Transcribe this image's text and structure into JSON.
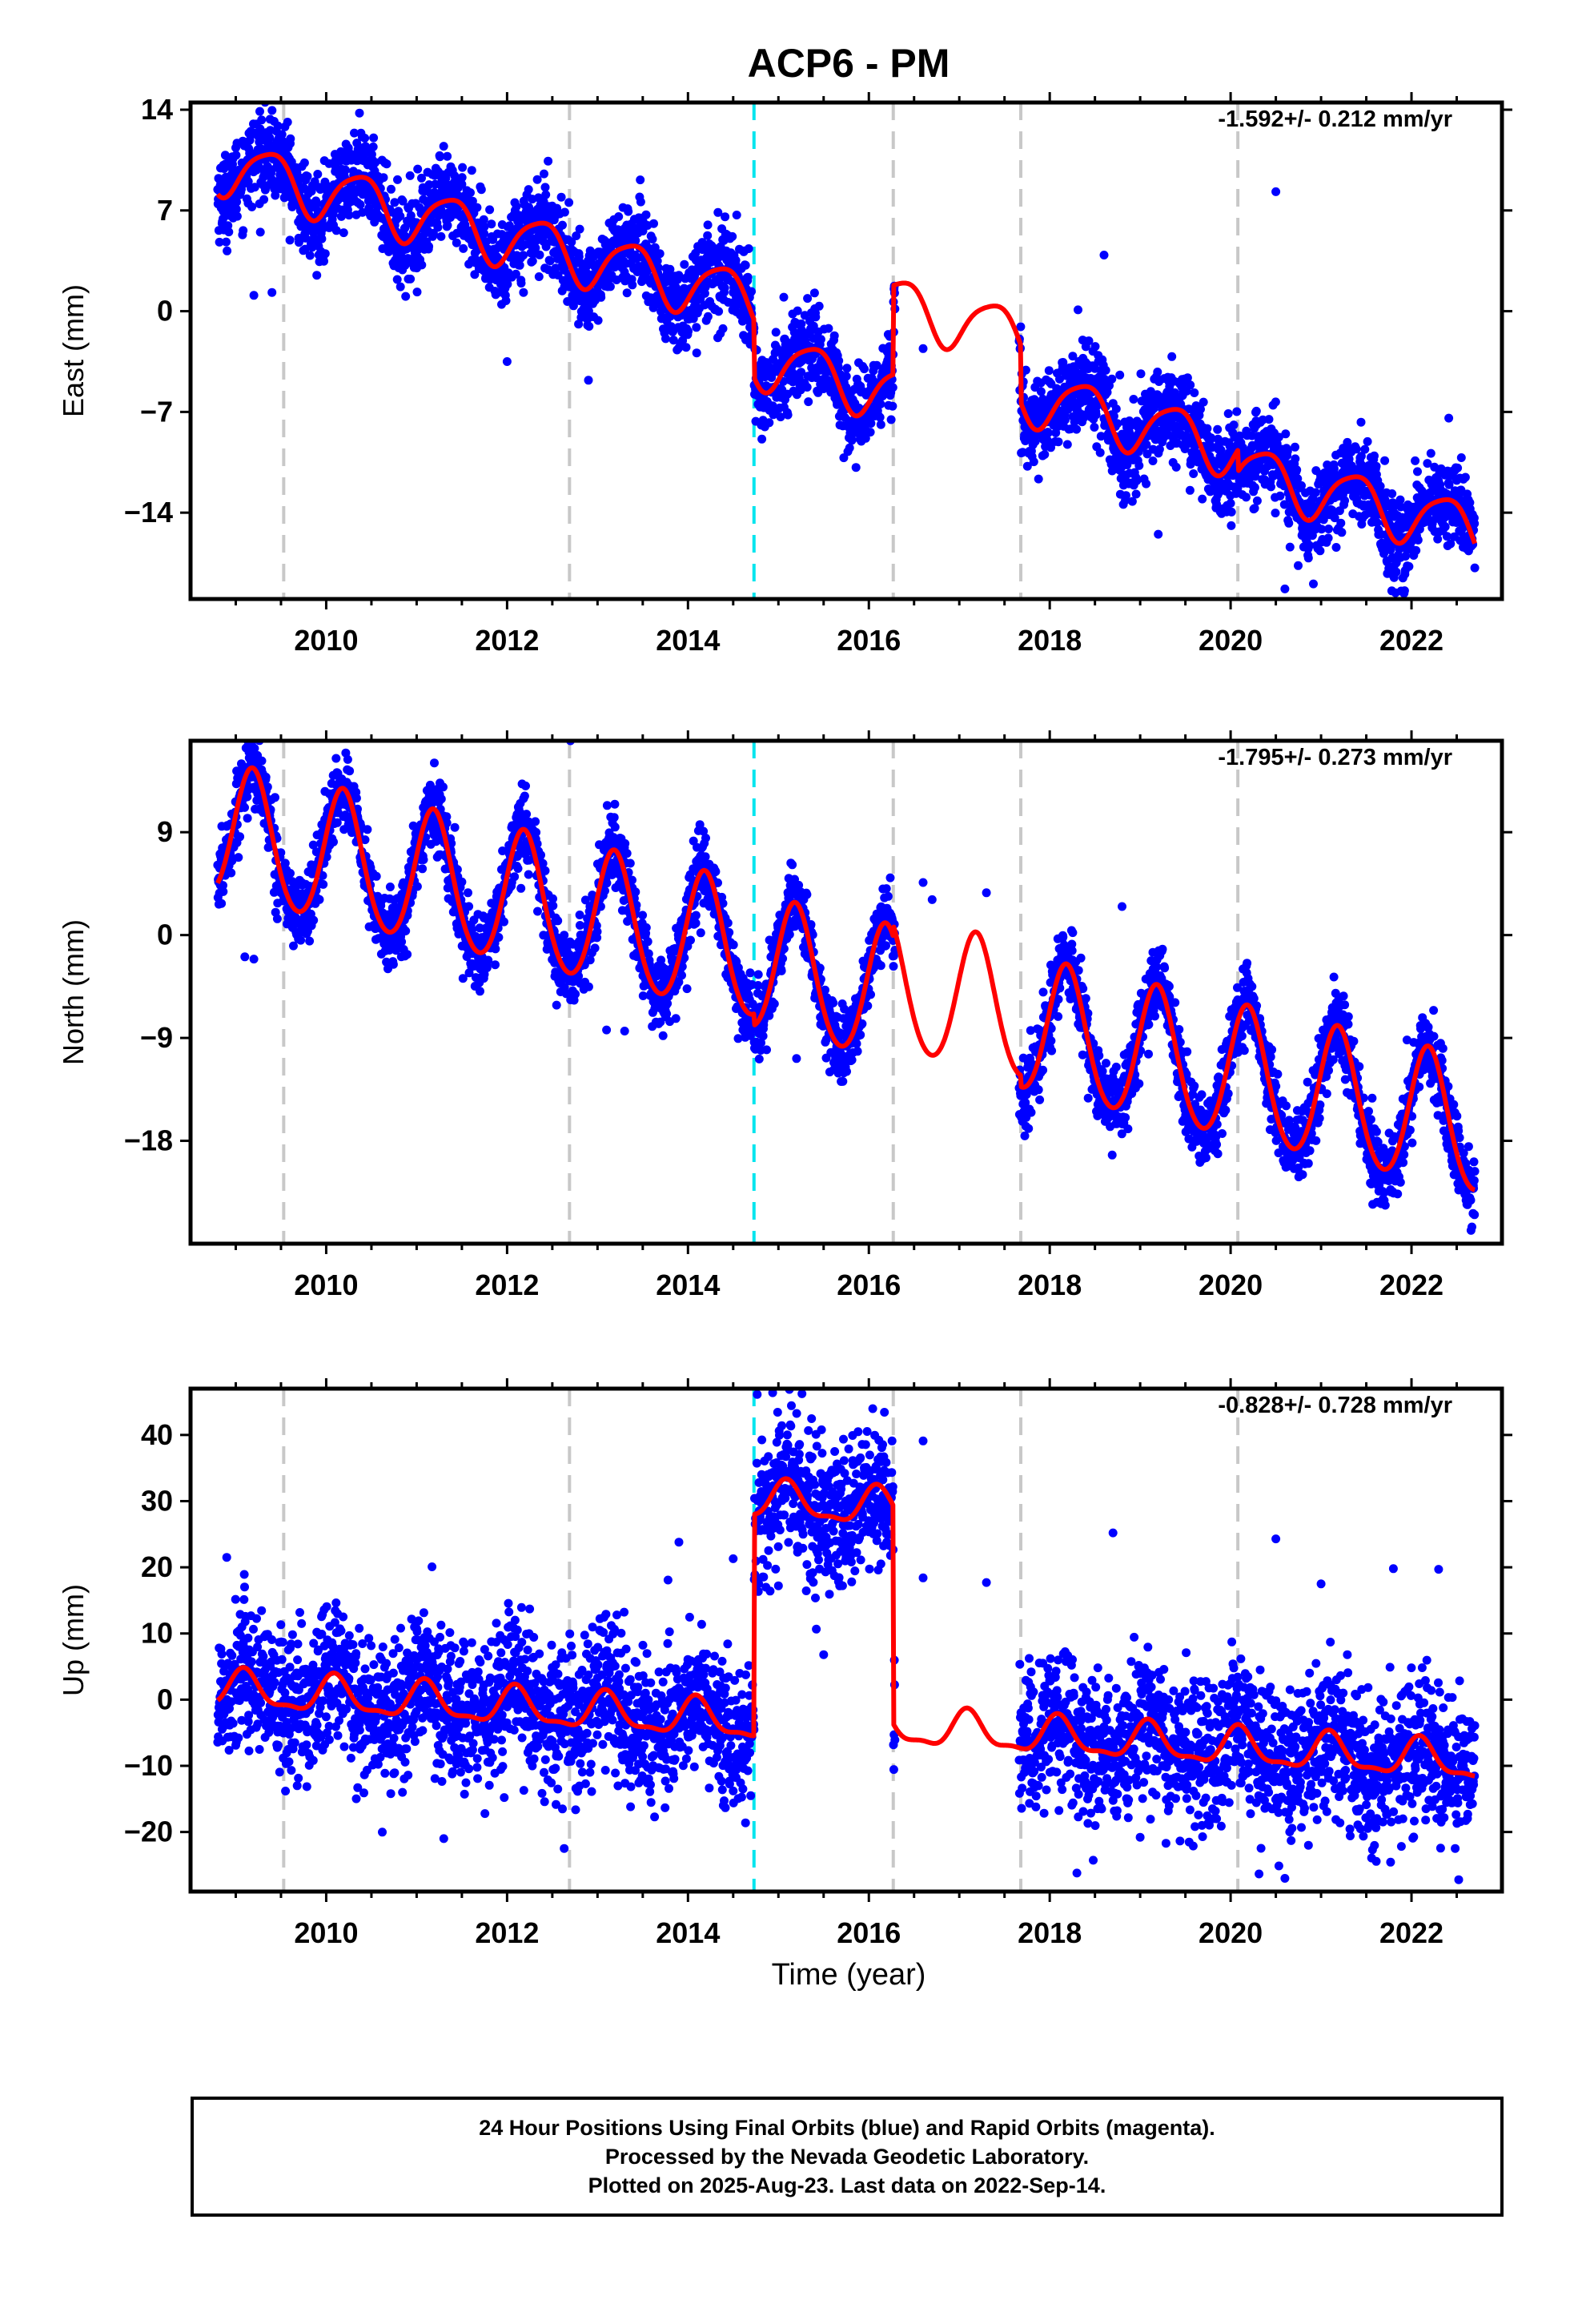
{
  "title": "ACP6 - PM",
  "xlabel": "Time (year)",
  "colors": {
    "final_orbits": "#0000ff",
    "model": "#ff0000",
    "equipment_change": "#c8c8c8",
    "earthquake": "#00e5ee",
    "frame": "#000000"
  },
  "footer": {
    "line1": "24 Hour Positions Using Final Orbits (blue) and Rapid Orbits (magenta).",
    "line2": "Processed by the Nevada Geodetic Laboratory.",
    "line3": "Plotted on 2025-Aug-23. Last data on 2022-Sep-14."
  },
  "chart_data": [
    {
      "type": "scatter",
      "component": "east",
      "ylabel": "East (mm)",
      "rate_label": "-1.592+/- 0.212 mm/yr",
      "xlim": [
        2008.5,
        2023.0
      ],
      "ylim": [
        -20.0,
        14.5
      ],
      "yticks": [
        14,
        7,
        0,
        -7,
        -14
      ],
      "xticks": [
        2010,
        2012,
        2014,
        2016,
        2018,
        2020,
        2022
      ],
      "vlines_gray": [
        2009.53,
        2012.69,
        2016.27,
        2017.68,
        2020.08
      ],
      "vlines_cyan": [
        2014.73
      ],
      "data_span": [
        2008.8,
        2022.7
      ],
      "gaps": [
        [
          2016.27,
          2017.68
        ]
      ],
      "model": {
        "offset": 10.2,
        "rate": -1.592,
        "ref_year": 2008.8,
        "annual_sin": 1.4,
        "annual_cos": -1.3,
        "semi_sin": 0.3,
        "semi_cos": 0.2,
        "steps": [
          {
            "t": 2014.73,
            "dy": -4.0
          },
          {
            "t": 2016.27,
            "dy": 6.2
          },
          {
            "t": 2017.68,
            "dy": -4.0
          },
          {
            "t": 2020.08,
            "dy": -1.5
          }
        ]
      },
      "scatter_sigma": 1.5,
      "outliers": [
        [
          2009.2,
          1.1
        ],
        [
          2009.4,
          1.3
        ],
        [
          2012.0,
          -3.5
        ],
        [
          2012.9,
          -4.8
        ],
        [
          2016.6,
          -2.6
        ],
        [
          2018.6,
          3.9
        ],
        [
          2019.2,
          -15.5
        ],
        [
          2020.5,
          8.3
        ],
        [
          2020.6,
          -19.3
        ],
        [
          2022.4,
          -16.3
        ]
      ],
      "n_points": 4300
    },
    {
      "type": "scatter",
      "component": "north",
      "ylabel": "North (mm)",
      "rate_label": "-1.795+/- 0.273 mm/yr",
      "xlim": [
        2008.5,
        2023.0
      ],
      "ylim": [
        -27.0,
        17.0
      ],
      "yticks": [
        9,
        0,
        -9,
        -18
      ],
      "xticks": [
        2010,
        2012,
        2014,
        2016,
        2018,
        2020,
        2022
      ],
      "vlines_gray": [
        2009.53,
        2012.69,
        2016.27,
        2017.68,
        2020.08
      ],
      "vlines_cyan": [
        2014.73
      ],
      "data_span": [
        2008.8,
        2022.7
      ],
      "gaps": [
        [
          2016.27,
          2017.68
        ]
      ],
      "model": {
        "offset": 9.0,
        "rate": -1.795,
        "ref_year": 2008.8,
        "annual_sin": 5.4,
        "annual_cos": 2.2,
        "semi_sin": 0.4,
        "semi_cos": -0.3,
        "steps": [
          {
            "t": 2014.73,
            "dy": -1.0
          },
          {
            "t": 2016.27,
            "dy": 1.0
          },
          {
            "t": 2017.68,
            "dy": -1.0
          }
        ]
      },
      "scatter_sigma": 1.6,
      "outliers": [
        [
          2009.1,
          -1.9
        ],
        [
          2009.2,
          -2.1
        ],
        [
          2013.1,
          -8.3
        ],
        [
          2013.3,
          -8.4
        ],
        [
          2015.2,
          -10.8
        ],
        [
          2016.6,
          4.6
        ],
        [
          2016.7,
          3.1
        ],
        [
          2017.3,
          3.7
        ],
        [
          2018.8,
          2.5
        ],
        [
          2012.7,
          17.0
        ]
      ],
      "n_points": 4300
    },
    {
      "type": "scatter",
      "component": "up",
      "ylabel": "Up (mm)",
      "rate_label": "-0.828+/- 0.728 mm/yr",
      "xlim": [
        2008.5,
        2023.0
      ],
      "ylim": [
        -29.0,
        47.0
      ],
      "yticks": [
        40,
        30,
        20,
        10,
        0,
        -10,
        -20
      ],
      "xticks": [
        2010,
        2012,
        2014,
        2016,
        2018,
        2020,
        2022
      ],
      "vlines_gray": [
        2009.53,
        2012.69,
        2016.27,
        2017.68,
        2020.08
      ],
      "vlines_cyan": [
        2014.73
      ],
      "data_span": [
        2008.8,
        2022.7
      ],
      "gaps": [
        [
          2016.27,
          2017.68
        ]
      ],
      "model": {
        "offset": 1.5,
        "rate": -0.828,
        "ref_year": 2008.8,
        "annual_sin": 1.5,
        "annual_cos": 2.2,
        "semi_sin": 0.8,
        "semi_cos": 0.5,
        "steps": [
          {
            "t": 2014.73,
            "dy": 33.5
          },
          {
            "t": 2016.27,
            "dy": -33.0
          }
        ]
      },
      "scatter_sigma": 5.5,
      "outliers": [
        [
          2008.9,
          21.5
        ],
        [
          2014.5,
          21.3
        ],
        [
          2013.9,
          23.8
        ],
        [
          2015.0,
          17.2
        ],
        [
          2015.5,
          6.8
        ],
        [
          2016.6,
          39.1
        ],
        [
          2016.6,
          18.4
        ],
        [
          2017.3,
          17.7
        ],
        [
          2018.7,
          25.2
        ],
        [
          2020.5,
          24.3
        ],
        [
          2021.0,
          17.5
        ],
        [
          2021.8,
          19.8
        ],
        [
          2022.3,
          19.7
        ],
        [
          2018.3,
          -26.2
        ],
        [
          2020.6,
          -27.0
        ],
        [
          2011.3,
          -21.0
        ],
        [
          2019.0,
          -20.8
        ]
      ],
      "n_points": 4300
    }
  ]
}
